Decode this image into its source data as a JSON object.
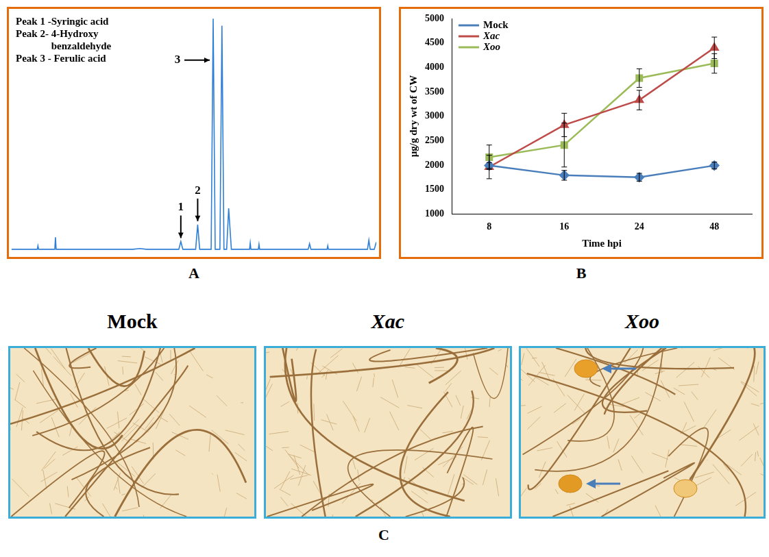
{
  "chart_data": [
    {
      "panel_label": "A",
      "type": "line",
      "annotations": [
        "Peak 1 -Syringic acid",
        "Peak 2- 4-Hydroxy benzaldehyde",
        "Peak 3 - Ferulic acid"
      ],
      "x": [
        0,
        38,
        39,
        40,
        64,
        65,
        66,
        180,
        190,
        200,
        248,
        251,
        254,
        273,
        276,
        279,
        296,
        299,
        302,
        309,
        312,
        315,
        319,
        322,
        326,
        353,
        354,
        355,
        366,
        367,
        368,
        440,
        442,
        444,
        468,
        469,
        470,
        528,
        530,
        532,
        538,
        541
      ],
      "values": [
        0,
        0,
        5,
        0,
        0,
        17,
        0,
        0,
        1,
        0,
        0,
        11,
        0,
        0,
        35,
        0,
        0,
        327,
        0,
        0,
        317,
        0,
        0,
        58,
        0,
        0,
        9,
        0,
        0,
        7,
        0,
        0,
        8,
        0,
        0,
        5,
        0,
        0,
        13,
        0,
        0,
        10
      ],
      "xlim": [
        0,
        541
      ],
      "ylim": [
        -5,
        335
      ],
      "tick_labels": false,
      "grid": false,
      "color": "#2f7fd6",
      "peaks": [
        {
          "label": "1",
          "x": 251,
          "y": 11
        },
        {
          "label": "2",
          "x": 276,
          "y": 35
        },
        {
          "label": "3",
          "x": 299,
          "y": 327
        }
      ]
    },
    {
      "panel_label": "B",
      "type": "line",
      "categories": [
        "8",
        "16",
        "24",
        "48"
      ],
      "x_label": "Time hpi",
      "y_label": "µg/g dry wt of CW",
      "ylim": [
        1000,
        5000
      ],
      "yticks": [
        1000,
        1500,
        2000,
        2500,
        3000,
        3500,
        4000,
        4500,
        5000
      ],
      "grid": false,
      "legend": "upper left",
      "series": [
        {
          "name": "Mock",
          "color": "#4a7ebb",
          "marker": "diamond",
          "values": [
            1990,
            1790,
            1750,
            1990
          ],
          "errors": [
            60,
            100,
            80,
            70
          ]
        },
        {
          "name": "Xac",
          "color": "#be4b48",
          "marker": "triangle",
          "values": [
            1960,
            2820,
            3330,
            4400
          ],
          "errors": [
            240,
            240,
            200,
            220
          ]
        },
        {
          "name": "Xoo",
          "color": "#9bbb59",
          "marker": "square",
          "values": [
            2160,
            2410,
            3780,
            4080
          ],
          "errors": [
            250,
            450,
            190,
            200
          ]
        }
      ]
    }
  ],
  "panel_c": {
    "label": "C",
    "images": [
      {
        "title": "Mock"
      },
      {
        "title": "Xac"
      },
      {
        "title": "Xoo"
      }
    ]
  }
}
